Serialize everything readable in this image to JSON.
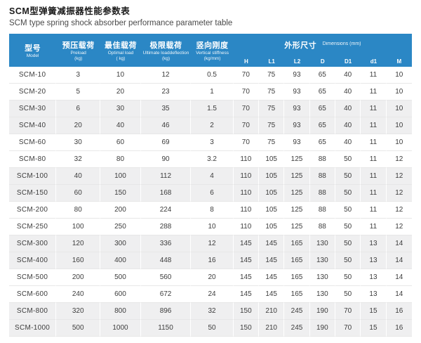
{
  "page": {
    "title_zh": "SCM型弹簧减振器性能参数表",
    "title_en": "SCM type spring shock absorber performance parameter table"
  },
  "colors": {
    "header_bg": "#2b87c5",
    "shaded_row_bg": "#efeff0",
    "row_divider": "#e7e7e7"
  },
  "table": {
    "header": {
      "model": {
        "zh": "型号",
        "en": "Model"
      },
      "preload": {
        "zh": "预压载荷",
        "en": "Preload",
        "unit": "(kg)"
      },
      "optimal": {
        "zh": "最佳载荷",
        "en": "Optimal load",
        "unit": "( kg)"
      },
      "ultimate": {
        "zh": "极限载荷",
        "en": "Ultimate loaddeflection",
        "unit": "(kg)"
      },
      "stiffness": {
        "zh": "竖向刚度",
        "en": "Vertical stiffness",
        "unit": "(kg/mm)"
      },
      "dimensions": {
        "zh": "外形尺寸",
        "en": "Dimensions (mm)"
      },
      "dim_cols": [
        "H",
        "L1",
        "L2",
        "D",
        "D1",
        "d1",
        "M"
      ]
    },
    "rows": [
      {
        "model": "SCM-10",
        "values": [
          "3",
          "10",
          "12",
          "0.5",
          "70",
          "75",
          "93",
          "65",
          "40",
          "11",
          "10"
        ]
      },
      {
        "model": "SCM-20",
        "values": [
          "5",
          "20",
          "23",
          "1",
          "70",
          "75",
          "93",
          "65",
          "40",
          "11",
          "10"
        ]
      },
      {
        "model": "SCM-30",
        "values": [
          "6",
          "30",
          "35",
          "1.5",
          "70",
          "75",
          "93",
          "65",
          "40",
          "11",
          "10"
        ]
      },
      {
        "model": "SCM-40",
        "values": [
          "20",
          "40",
          "46",
          "2",
          "70",
          "75",
          "93",
          "65",
          "40",
          "11",
          "10"
        ]
      },
      {
        "model": "SCM-60",
        "values": [
          "30",
          "60",
          "69",
          "3",
          "70",
          "75",
          "93",
          "65",
          "40",
          "11",
          "10"
        ]
      },
      {
        "model": "SCM-80",
        "values": [
          "32",
          "80",
          "90",
          "3.2",
          "110",
          "105",
          "125",
          "88",
          "50",
          "11",
          "12"
        ]
      },
      {
        "model": "SCM-100",
        "values": [
          "40",
          "100",
          "112",
          "4",
          "110",
          "105",
          "125",
          "88",
          "50",
          "11",
          "12"
        ]
      },
      {
        "model": "SCM-150",
        "values": [
          "60",
          "150",
          "168",
          "6",
          "110",
          "105",
          "125",
          "88",
          "50",
          "11",
          "12"
        ]
      },
      {
        "model": "SCM-200",
        "values": [
          "80",
          "200",
          "224",
          "8",
          "110",
          "105",
          "125",
          "88",
          "50",
          "11",
          "12"
        ]
      },
      {
        "model": "SCM-250",
        "values": [
          "100",
          "250",
          "288",
          "10",
          "110",
          "105",
          "125",
          "88",
          "50",
          "11",
          "12"
        ]
      },
      {
        "model": "SCM-300",
        "values": [
          "120",
          "300",
          "336",
          "12",
          "145",
          "145",
          "165",
          "130",
          "50",
          "13",
          "14"
        ]
      },
      {
        "model": "SCM-400",
        "values": [
          "160",
          "400",
          "448",
          "16",
          "145",
          "145",
          "165",
          "130",
          "50",
          "13",
          "14"
        ]
      },
      {
        "model": "SCM-500",
        "values": [
          "200",
          "500",
          "560",
          "20",
          "145",
          "145",
          "165",
          "130",
          "50",
          "13",
          "14"
        ]
      },
      {
        "model": "SCM-600",
        "values": [
          "240",
          "600",
          "672",
          "24",
          "145",
          "145",
          "165",
          "130",
          "50",
          "13",
          "14"
        ]
      },
      {
        "model": "SCM-800",
        "values": [
          "320",
          "800",
          "896",
          "32",
          "150",
          "210",
          "245",
          "190",
          "70",
          "15",
          "16"
        ]
      },
      {
        "model": "SCM-1000",
        "values": [
          "500",
          "1000",
          "1150",
          "50",
          "150",
          "210",
          "245",
          "190",
          "70",
          "15",
          "16"
        ]
      }
    ]
  }
}
